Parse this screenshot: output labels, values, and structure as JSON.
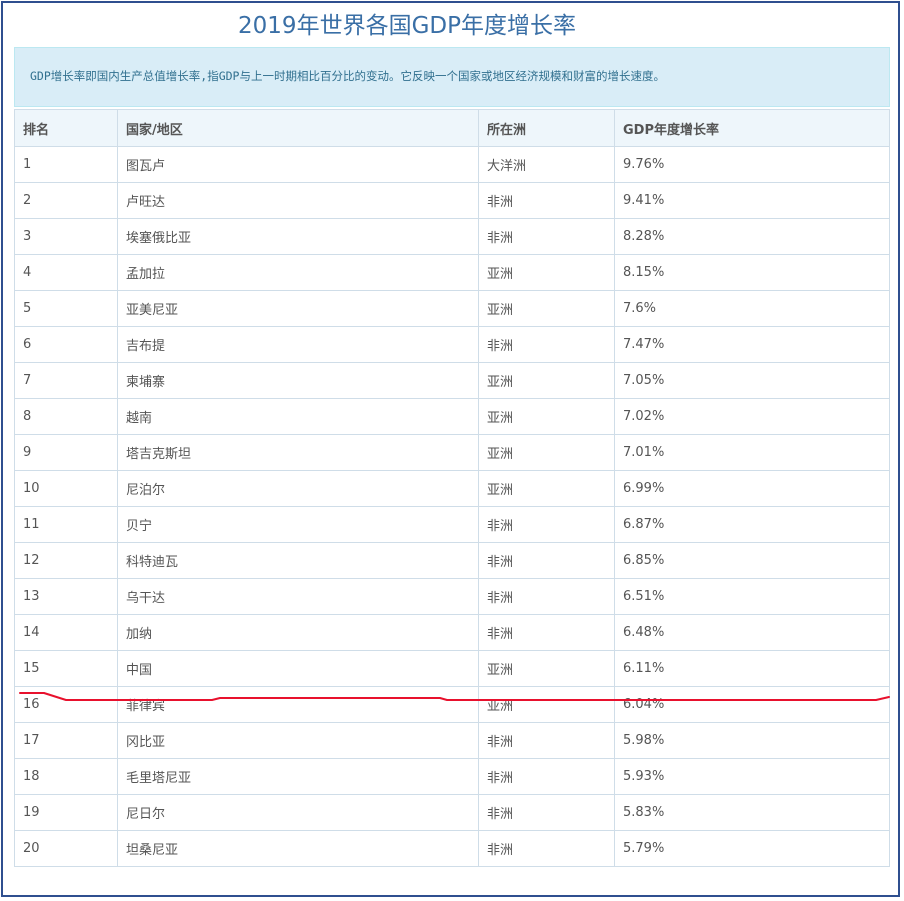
{
  "page_title": "2019年世界各国GDP年度增长率",
  "notice": "GDP增长率即国内生产总值增长率,指GDP与上一时期相比百分比的变动。它反映一个国家或地区经济规模和财富的增长速度。",
  "table": {
    "headers": [
      "排名",
      "国家/地区",
      "所在洲",
      "GDP年度增长率"
    ],
    "rows": [
      [
        "1",
        "图瓦卢",
        "大洋洲",
        "9.76%"
      ],
      [
        "2",
        "卢旺达",
        "非洲",
        "9.41%"
      ],
      [
        "3",
        "埃塞俄比亚",
        "非洲",
        "8.28%"
      ],
      [
        "4",
        "孟加拉",
        "亚洲",
        "8.15%"
      ],
      [
        "5",
        "亚美尼亚",
        "亚洲",
        "7.6%"
      ],
      [
        "6",
        "吉布提",
        "非洲",
        "7.47%"
      ],
      [
        "7",
        "柬埔寨",
        "亚洲",
        "7.05%"
      ],
      [
        "8",
        "越南",
        "亚洲",
        "7.02%"
      ],
      [
        "9",
        "塔吉克斯坦",
        "亚洲",
        "7.01%"
      ],
      [
        "10",
        "尼泊尔",
        "亚洲",
        "6.99%"
      ],
      [
        "11",
        "贝宁",
        "非洲",
        "6.87%"
      ],
      [
        "12",
        "科特迪瓦",
        "非洲",
        "6.85%"
      ],
      [
        "13",
        "乌干达",
        "非洲",
        "6.51%"
      ],
      [
        "14",
        "加纳",
        "非洲",
        "6.48%"
      ],
      [
        "15",
        "中国",
        "亚洲",
        "6.11%"
      ],
      [
        "16",
        "菲律宾",
        "亚洲",
        "6.04%"
      ],
      [
        "17",
        "冈比亚",
        "非洲",
        "5.98%"
      ],
      [
        "18",
        "毛里塔尼亚",
        "非洲",
        "5.93%"
      ],
      [
        "19",
        "尼日尔",
        "非洲",
        "5.83%"
      ],
      [
        "20",
        "坦桑尼亚",
        "非洲",
        "5.79%"
      ]
    ]
  },
  "annotation": {
    "highlight_color": "#e8112d"
  }
}
